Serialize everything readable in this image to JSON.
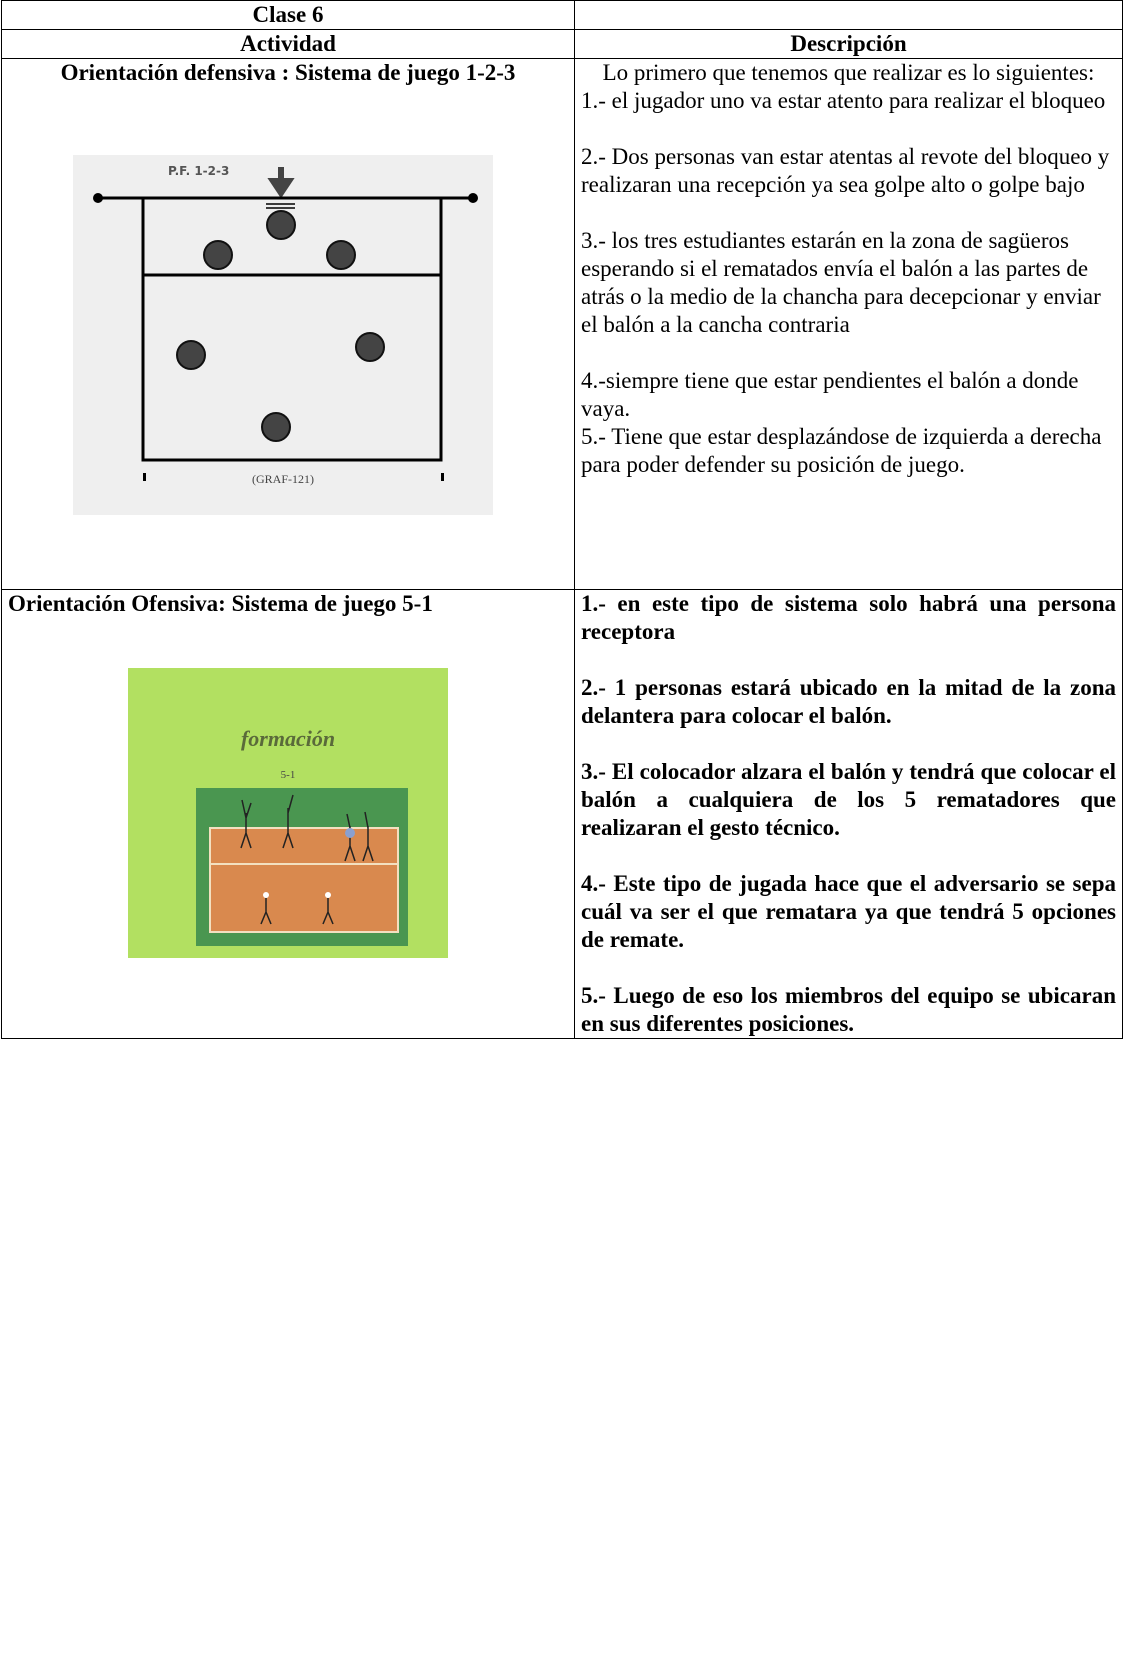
{
  "header": {
    "title": "Clase 6"
  },
  "table": {
    "columns": [
      "Actividad",
      "Descripción"
    ],
    "rows": [
      {
        "activity": "Orientación defensiva :  Sistema de juego 1-2-3",
        "figure": {
          "label": "P.F. 1-2-3",
          "caption": "(GRAF-121)"
        },
        "description": [
          "Lo primero que tenemos que realizar es lo siguientes:",
          "1.-  el jugador uno va estar atento para realizar el bloqueo",
          "2.- Dos personas van estar atentas al revote del bloqueo y realizaran una recepción ya sea golpe alto o golpe bajo",
          "3.-  los tres estudiantes estarán en la zona de sagüeros esperando si el rematados  envía el balón a las partes de atrás o la medio de la chancha para decepcionar y enviar el balón a la cancha contraria",
          "4.-siempre tiene que estar pendientes el balón a donde vaya.",
          "5.- Tiene que estar desplazándose de izquierda a derecha para poder defender su posición de juego."
        ]
      },
      {
        "activity": "Orientación Ofensiva: Sistema de juego 5-1",
        "figure": {
          "title": "formación",
          "label": "5-1"
        },
        "description": [
          "1.- en este tipo de sistema solo habrá una persona receptora",
          "2.- 1 personas estará ubicado en la mitad de la zona delantera para colocar el balón.",
          "3.- El colocador alzara el balón y tendrá que  colocar el balón a cualquiera de los 5 rematadores que realizaran el gesto técnico.",
          "4.- Este tipo de jugada hace que el adversario se sepa cuál va ser el que rematara ya que tendrá 5 opciones de remate.",
          "5.- Luego de eso los miembros del equipo se ubicaran en sus diferentes posiciones."
        ]
      }
    ]
  }
}
